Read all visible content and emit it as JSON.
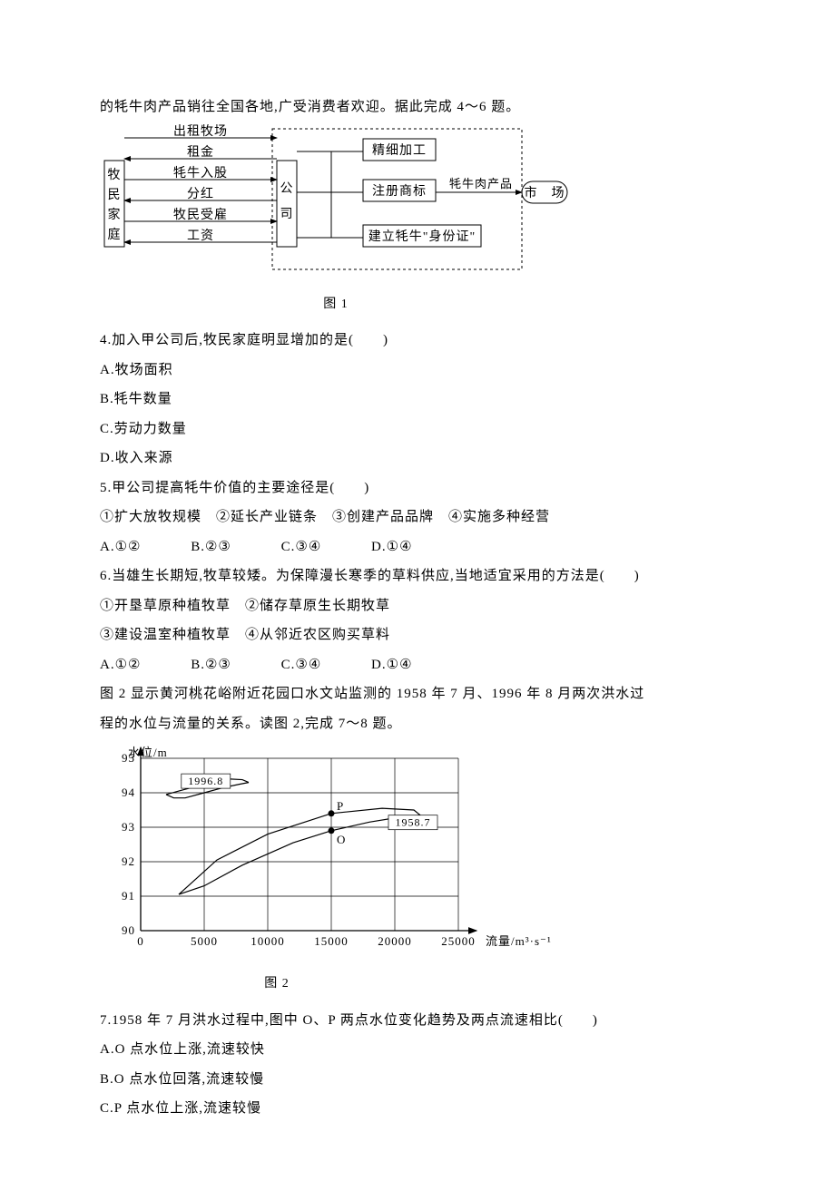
{
  "intro1": "的牦牛肉产品销往全国各地,广受消费者欢迎。据此完成 4～6 题。",
  "fig1": {
    "caption": "图 1",
    "left_label": "牧民家庭",
    "mid_label": "公司",
    "arrows_top": [
      "出租牧场",
      "租金",
      "牦牛入股",
      "分红",
      "牧民受雇",
      "工资"
    ],
    "mid_boxes": [
      "精细加工",
      "注册商标",
      "建立牦牛\"身份证\""
    ],
    "out_label": "牦牛肉产品",
    "out_box": "市　场",
    "font_size": 14,
    "stroke": "#000000"
  },
  "q4": {
    "stem": "4.加入甲公司后,牧民家庭明显增加的是(　　)",
    "opts": [
      "A.牧场面积",
      "B.牦牛数量",
      "C.劳动力数量",
      "D.收入来源"
    ]
  },
  "q5": {
    "stem": "5.甲公司提高牦牛价值的主要途径是(　　)",
    "line2": "①扩大放牧规模　②延长产业链条　③创建产品品牌　④实施多种经营",
    "opts": [
      "A.①②",
      "B.②③",
      "C.③④",
      "D.①④"
    ]
  },
  "q6": {
    "stem": "6.当雄生长期短,牧草较矮。为保障漫长寒季的草料供应,当地适宜采用的方法是(　　)",
    "line2": "①开垦草原种植牧草　②储存草原生长期牧草",
    "line3": "③建设温室种植牧草　④从邻近农区购买草料",
    "opts": [
      "A.①②",
      "B.②③",
      "C.③④",
      "D.①④"
    ]
  },
  "intro2a": "图 2 显示黄河桃花峪附近花园口水文站监测的 1958 年 7 月、1996 年 8 月两次洪水过",
  "intro2b": "程的水位与流量的关系。读图 2,完成 7～8 题。",
  "fig2": {
    "caption": "图 2",
    "ylabel": "水位/m",
    "xlabel": "流量/m³·s⁻¹",
    "yticks": [
      90,
      91,
      92,
      93,
      94,
      95
    ],
    "xticks": [
      0,
      5000,
      10000,
      15000,
      20000,
      25000
    ],
    "xlim": [
      0,
      25000
    ],
    "ylim": [
      90,
      95
    ],
    "gridlines_y": [
      90,
      91,
      92,
      93,
      94,
      95
    ],
    "gridlines_x": [
      0,
      5000,
      10000,
      15000,
      20000,
      25000
    ],
    "grid_color": "#000000",
    "bg_color": "#ffffff",
    "label_1996": "1996.8",
    "label_1958": "1958.7",
    "label_P": "P",
    "label_O": "O",
    "point_P": [
      15000,
      93.4
    ],
    "point_O": [
      15000,
      92.9
    ],
    "line_1958_upper": [
      [
        3000,
        91.05
      ],
      [
        6000,
        92.05
      ],
      [
        10000,
        92.8
      ],
      [
        15000,
        93.4
      ],
      [
        19000,
        93.55
      ],
      [
        21500,
        93.5
      ],
      [
        22000,
        93.35
      ]
    ],
    "line_1958_lower": [
      [
        3000,
        91.05
      ],
      [
        5000,
        91.3
      ],
      [
        8000,
        91.9
      ],
      [
        12000,
        92.55
      ],
      [
        15000,
        92.9
      ],
      [
        18000,
        93.15
      ],
      [
        20500,
        93.3
      ],
      [
        22000,
        93.35
      ]
    ],
    "line_1996_upper": [
      [
        2000,
        93.95
      ],
      [
        3000,
        94.05
      ],
      [
        4000,
        94.15
      ],
      [
        5500,
        94.3
      ],
      [
        7000,
        94.4
      ],
      [
        8000,
        94.38
      ],
      [
        8500,
        94.3
      ]
    ],
    "line_1996_lower": [
      [
        2000,
        93.95
      ],
      [
        2600,
        93.85
      ],
      [
        3500,
        93.85
      ],
      [
        5000,
        94.0
      ],
      [
        6500,
        94.15
      ],
      [
        7800,
        94.25
      ],
      [
        8500,
        94.3
      ]
    ],
    "line_width": 1.2,
    "font_size": 13
  },
  "q7": {
    "stem": "7.1958 年 7 月洪水过程中,图中 O、P 两点水位变化趋势及两点流速相比(　　)",
    "opts": [
      "A.O 点水位上涨,流速较快",
      "B.O 点水位回落,流速较慢",
      "C.P 点水位上涨,流速较慢"
    ]
  }
}
